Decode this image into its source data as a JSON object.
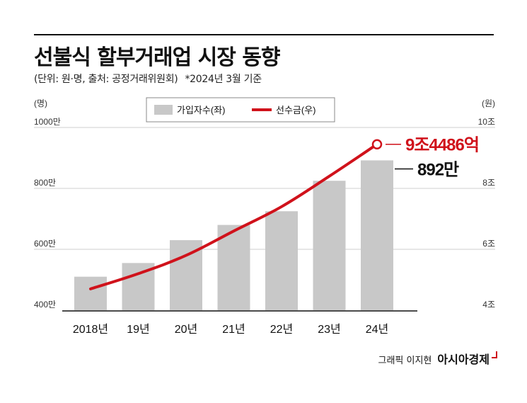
{
  "header": {
    "title": "선불식 할부거래업 시장 동향",
    "subtitle": "(단위: 원·명, 출처: 공정거래위원회)",
    "note": "*2024년 3월 기준"
  },
  "credit": {
    "text": "그래픽 이지현",
    "brand": "아시아경제"
  },
  "chart_data": {
    "type": "bar",
    "categories": [
      "2018년",
      "19년",
      "20년",
      "21년",
      "22년",
      "23년",
      "24년"
    ],
    "series": [
      {
        "name": "가입자수(좌)",
        "type": "bar",
        "axis": "left",
        "values": [
          510,
          555,
          630,
          680,
          725,
          825,
          892
        ],
        "color": "#c8c8c8"
      },
      {
        "name": "선수금(우)",
        "type": "line",
        "axis": "right",
        "values": [
          4.7,
          5.2,
          5.8,
          6.6,
          7.4,
          8.4,
          9.4486
        ],
        "color": "#d0121b"
      }
    ],
    "left_axis": {
      "unit": "(명)",
      "ticks": [
        "400만",
        "600만",
        "800만",
        "1000만"
      ],
      "range": [
        400,
        1000
      ]
    },
    "right_axis": {
      "unit": "(원)",
      "ticks": [
        "4조",
        "6조",
        "8조",
        "10조"
      ],
      "range": [
        4,
        10
      ]
    },
    "annotations": {
      "line_last": "9조4486억",
      "bar_last": "892만"
    },
    "grid": true,
    "legend": "top-center"
  }
}
